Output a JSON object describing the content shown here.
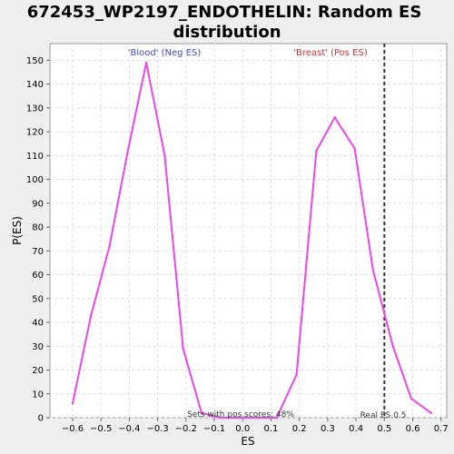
{
  "chart_data": {
    "type": "line",
    "title_lines": [
      "672453_WP2197_ENDOTHELIN: Random ES",
      "distribution"
    ],
    "xlabel": "ES",
    "ylabel": "P(ES)",
    "xlim": [
      -0.68,
      0.72
    ],
    "ylim": [
      0,
      157
    ],
    "x_ticks": [
      -0.6,
      -0.5,
      -0.4,
      -0.3,
      -0.2,
      -0.1,
      0.0,
      0.1,
      0.2,
      0.3,
      0.4,
      0.5,
      0.6,
      0.7
    ],
    "x_tick_labels": [
      "−0.6",
      "−0.5",
      "−0.4",
      "−0.3",
      "−0.2",
      "−0.1",
      "0.0",
      "0.1",
      "0.2",
      "0.3",
      "0.4",
      "0.5",
      "0.6",
      "0.7"
    ],
    "y_ticks": [
      0,
      10,
      20,
      30,
      40,
      50,
      60,
      70,
      80,
      90,
      100,
      110,
      120,
      130,
      140,
      150
    ],
    "y_tick_labels": [
      "0",
      "10",
      "20",
      "30",
      "40",
      "50",
      "60",
      "70",
      "80",
      "90",
      "100",
      "110",
      "120",
      "130",
      "140",
      "150"
    ],
    "grid": true,
    "series": [
      {
        "color": "#ee44ee",
        "points": [
          [
            -0.6,
            6
          ],
          [
            -0.535,
            43
          ],
          [
            -0.47,
            72
          ],
          [
            -0.405,
            112
          ],
          [
            -0.34,
            149
          ],
          [
            -0.275,
            110
          ],
          [
            -0.21,
            29
          ],
          [
            -0.145,
            2
          ],
          [
            -0.08,
            0
          ],
          [
            0.12,
            0
          ],
          [
            0.19,
            18
          ],
          [
            0.26,
            112
          ],
          [
            0.325,
            126
          ],
          [
            0.395,
            113
          ],
          [
            0.46,
            62
          ],
          [
            0.53,
            30
          ],
          [
            0.595,
            8
          ],
          [
            0.665,
            2
          ]
        ]
      }
    ],
    "real_es": 0.5,
    "annotations": {
      "neg_phenotype": "'Blood' (Neg ES)",
      "pos_phenotype": "'Breast' (Pos ES)",
      "pos_scores": "Sets with pos scores: 48%",
      "real_es_label": "Real ES 0.5"
    },
    "colors": {
      "line": "#ee44ee",
      "neg_label": "#4444cc",
      "pos_label": "#cc3333",
      "grid": "#dddddd"
    }
  }
}
